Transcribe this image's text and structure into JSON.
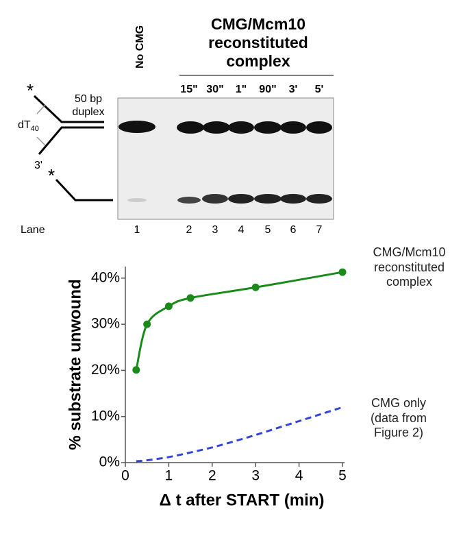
{
  "gel": {
    "no_enzyme_label": "No CMG",
    "complex_label": "CMG/Mcm10 reconstituted complex",
    "time_points": [
      "15\"",
      "30\"",
      "1\"",
      "90\"",
      "3'",
      "5'"
    ],
    "substrate": {
      "duplex_label": "50 bp duplex",
      "loop_label": "dT",
      "loop_subscript": "40",
      "end_label": "3'",
      "star": "*"
    },
    "lane_header": "Lane",
    "lanes": [
      1,
      2,
      3,
      4,
      5,
      6,
      7
    ]
  },
  "chart_data": {
    "type": "line",
    "x_label": "Δ t after START (min)",
    "y_label": "% substrate unwound",
    "xlim": [
      0,
      5.05
    ],
    "ylim": [
      0,
      42.5
    ],
    "xticks": [
      0,
      1,
      2,
      3,
      4,
      5
    ],
    "yticks": [
      {
        "value": 0,
        "label": "0%"
      },
      {
        "value": 10,
        "label": "10%"
      },
      {
        "value": 20,
        "label": "20%"
      },
      {
        "value": 30,
        "label": "30%"
      },
      {
        "value": 40,
        "label": "40%"
      }
    ],
    "series": [
      {
        "name": "CMG/Mcm10 reconstituted complex",
        "color": "#1a8a1a",
        "style": "solid",
        "markers": true,
        "x": [
          0.25,
          0.5,
          1,
          1.5,
          3,
          5
        ],
        "values": [
          20.1,
          30,
          33.9,
          35.7,
          38,
          41.3
        ]
      },
      {
        "name": "CMG only (data from Figure 2)",
        "color": "#3344dd",
        "style": "dashed",
        "markers": false,
        "x": [
          0.25,
          0.5,
          1,
          1.5,
          2,
          2.5,
          3,
          3.5,
          4,
          4.5,
          5
        ],
        "values": [
          0.3,
          0.5,
          1.2,
          2.2,
          3.3,
          4.6,
          6,
          7.5,
          9,
          10.5,
          12
        ]
      }
    ]
  }
}
